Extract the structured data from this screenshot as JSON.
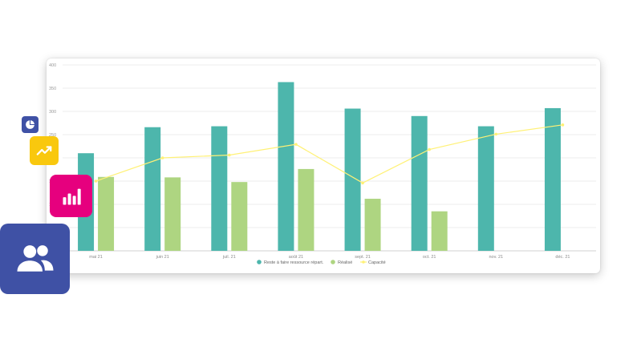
{
  "colors": {
    "series_a": "#4db6ac",
    "series_b": "#aed581",
    "series_c": "#fff176",
    "tile_pie": "#3f51a5",
    "tile_line": "#f9c80e",
    "tile_bars": "#e6007e",
    "tile_users": "#3f51a5"
  },
  "icons": {
    "pie": "pie-chart-icon",
    "line": "trend-line-icon",
    "bars": "bar-chart-icon",
    "users": "users-group-icon"
  },
  "chart_data": {
    "type": "bar",
    "categories": [
      "mai 21",
      "juin 21",
      "juil. 21",
      "août 21",
      "sept. 21",
      "oct. 21",
      "nov. 21",
      "déc. 21"
    ],
    "series": [
      {
        "name": "Reste à faire ressource répart.",
        "type": "bar",
        "values": [
          210,
          266,
          268,
          363,
          306,
          290,
          268,
          307
        ]
      },
      {
        "name": "Réalisé",
        "type": "bar",
        "values": [
          159,
          158,
          148,
          176,
          112,
          85,
          null,
          null
        ]
      },
      {
        "name": "Capacité",
        "type": "line",
        "values": [
          150,
          200,
          206,
          229,
          146,
          218,
          251,
          271
        ]
      }
    ],
    "ylim": [
      0,
      400
    ],
    "yticks": [
      0,
      50,
      100,
      150,
      200,
      250,
      300,
      350,
      400
    ],
    "grid": true,
    "legend": "bottom"
  }
}
